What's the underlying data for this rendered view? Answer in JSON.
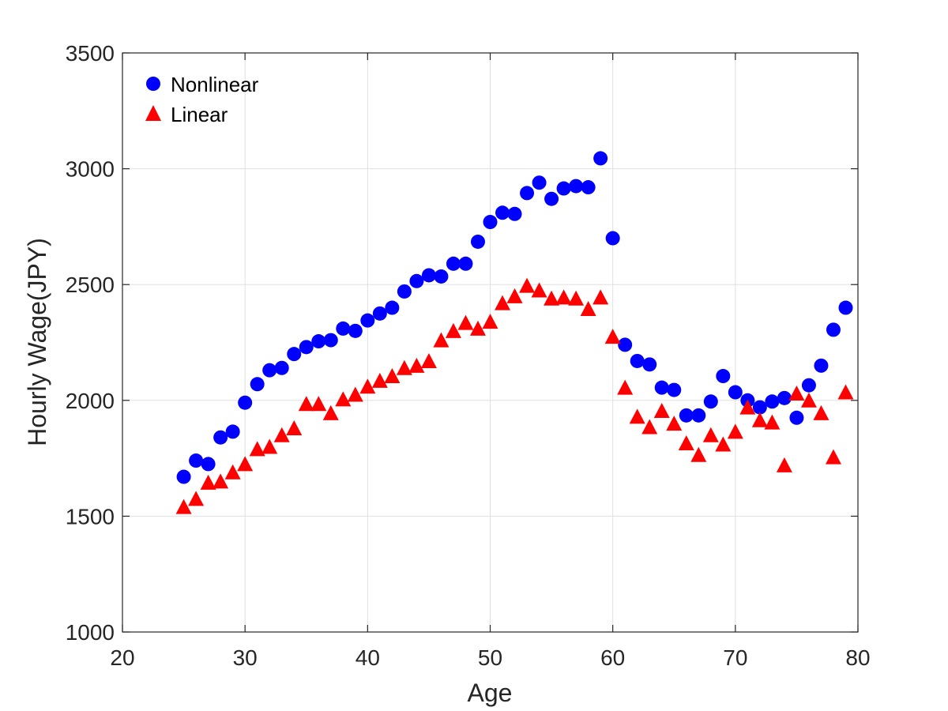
{
  "chart_data": {
    "type": "scatter",
    "title": "",
    "xlabel": "Age",
    "ylabel": "Hourly Wage(JPY)",
    "xlim": [
      20,
      80
    ],
    "ylim": [
      1000,
      3500
    ],
    "xticks": [
      20,
      30,
      40,
      50,
      60,
      70,
      80
    ],
    "yticks": [
      1000,
      1500,
      2000,
      2500,
      3000,
      3500
    ],
    "grid": true,
    "legend_position": "top-left",
    "x": [
      25,
      26,
      27,
      28,
      29,
      30,
      31,
      32,
      33,
      34,
      35,
      36,
      37,
      38,
      39,
      40,
      41,
      42,
      43,
      44,
      45,
      46,
      47,
      48,
      49,
      50,
      51,
      52,
      53,
      54,
      55,
      56,
      57,
      58,
      59,
      60,
      61,
      62,
      63,
      64,
      65,
      66,
      67,
      68,
      69,
      70,
      71,
      72,
      73,
      74,
      75,
      76,
      77,
      78,
      79
    ],
    "series": [
      {
        "name": "Nonlinear",
        "marker": "circle",
        "color": "#0000ff",
        "values": [
          1670,
          1740,
          1725,
          1840,
          1865,
          1990,
          2070,
          2130,
          2140,
          2200,
          2230,
          2255,
          2260,
          2310,
          2300,
          2345,
          2375,
          2400,
          2470,
          2515,
          2540,
          2535,
          2590,
          2590,
          2685,
          2770,
          2810,
          2805,
          2895,
          2940,
          2870,
          2915,
          2925,
          2920,
          3045,
          2700,
          2240,
          2170,
          2155,
          2055,
          2045,
          1935,
          1935,
          1995,
          2105,
          2035,
          2000,
          1970,
          1995,
          2010,
          1925,
          2065,
          2150,
          2305,
          2400
        ]
      },
      {
        "name": "Linear",
        "marker": "triangle",
        "color": "#ff0000",
        "values": [
          1540,
          1575,
          1645,
          1650,
          1690,
          1725,
          1790,
          1800,
          1850,
          1880,
          1985,
          1985,
          1945,
          2005,
          2025,
          2060,
          2085,
          2105,
          2140,
          2150,
          2170,
          2260,
          2300,
          2335,
          2310,
          2340,
          2420,
          2450,
          2495,
          2475,
          2440,
          2445,
          2440,
          2395,
          2445,
          2275,
          2055,
          1930,
          1885,
          1955,
          1900,
          1815,
          1765,
          1850,
          1810,
          1865,
          1970,
          1915,
          1905,
          1720,
          2030,
          2000,
          1945,
          1755,
          2035
        ]
      }
    ]
  }
}
